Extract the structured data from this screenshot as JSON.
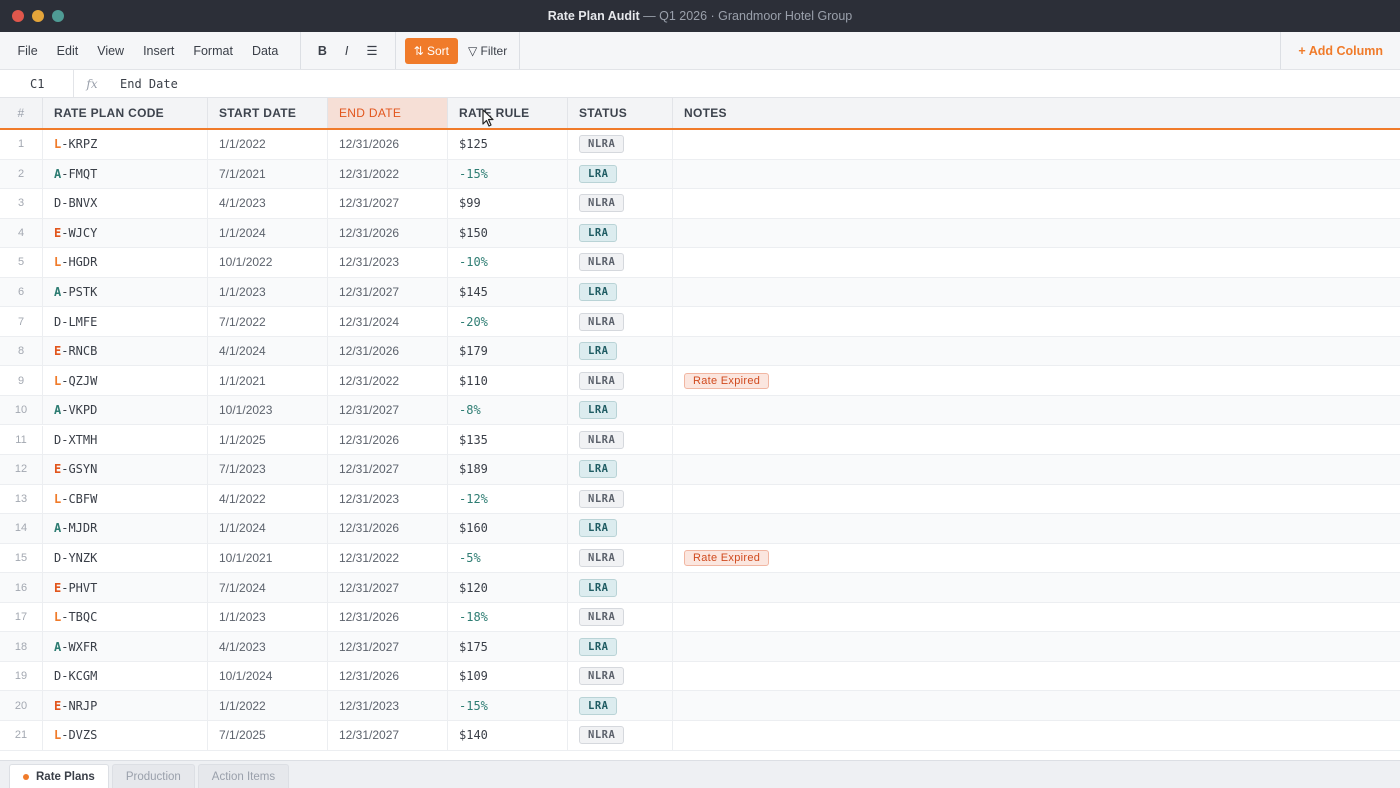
{
  "window": {
    "title_main": "Rate Plan Audit",
    "title_rest": " — Q1 2026  ·  Grandmoor Hotel Group"
  },
  "toolbar": {
    "menus": [
      "File",
      "Edit",
      "View",
      "Insert",
      "Format",
      "Data"
    ],
    "bold": "B",
    "italic": "I",
    "align": "☰",
    "sort": "⇅ Sort",
    "filter": "▽ Filter",
    "add_column": "+ Add Column"
  },
  "formula_bar": {
    "cell_ref": "C1",
    "fx": "fx",
    "value": "End Date"
  },
  "columns": {
    "num": "#",
    "code": "RATE PLAN CODE",
    "start": "START DATE",
    "end": "END DATE",
    "rule": "RATE RULE",
    "status": "STATUS",
    "notes": "NOTES"
  },
  "rows": [
    {
      "n": "1",
      "prefix": "L",
      "rest": "-KRPZ",
      "start": "1/1/2022",
      "end": "12/31/2026",
      "rule": "$125",
      "status": "NLRA",
      "note": ""
    },
    {
      "n": "2",
      "prefix": "A",
      "rest": "-FMQT",
      "start": "7/1/2021",
      "end": "12/31/2022",
      "rule": "-15%",
      "status": "LRA",
      "note": ""
    },
    {
      "n": "3",
      "prefix": "D",
      "rest": "-BNVX",
      "start": "4/1/2023",
      "end": "12/31/2027",
      "rule": "$99",
      "status": "NLRA",
      "note": ""
    },
    {
      "n": "4",
      "prefix": "E",
      "rest": "-WJCY",
      "start": "1/1/2024",
      "end": "12/31/2026",
      "rule": "$150",
      "status": "LRA",
      "note": ""
    },
    {
      "n": "5",
      "prefix": "L",
      "rest": "-HGDR",
      "start": "10/1/2022",
      "end": "12/31/2023",
      "rule": "-10%",
      "status": "NLRA",
      "note": ""
    },
    {
      "n": "6",
      "prefix": "A",
      "rest": "-PSTK",
      "start": "1/1/2023",
      "end": "12/31/2027",
      "rule": "$145",
      "status": "LRA",
      "note": ""
    },
    {
      "n": "7",
      "prefix": "D",
      "rest": "-LMFE",
      "start": "7/1/2022",
      "end": "12/31/2024",
      "rule": "-20%",
      "status": "NLRA",
      "note": ""
    },
    {
      "n": "8",
      "prefix": "E",
      "rest": "-RNCB",
      "start": "4/1/2024",
      "end": "12/31/2026",
      "rule": "$179",
      "status": "LRA",
      "note": ""
    },
    {
      "n": "9",
      "prefix": "L",
      "rest": "-QZJW",
      "start": "1/1/2021",
      "end": "12/31/2022",
      "rule": "$110",
      "status": "NLRA",
      "note": "Rate Expired"
    },
    {
      "n": "10",
      "prefix": "A",
      "rest": "-VKPD",
      "start": "10/1/2023",
      "end": "12/31/2027",
      "rule": "-8%",
      "status": "LRA",
      "note": ""
    },
    {
      "n": "11",
      "prefix": "D",
      "rest": "-XTMH",
      "start": "1/1/2025",
      "end": "12/31/2026",
      "rule": "$135",
      "status": "NLRA",
      "note": ""
    },
    {
      "n": "12",
      "prefix": "E",
      "rest": "-GSYN",
      "start": "7/1/2023",
      "end": "12/31/2027",
      "rule": "$189",
      "status": "LRA",
      "note": ""
    },
    {
      "n": "13",
      "prefix": "L",
      "rest": "-CBFW",
      "start": "4/1/2022",
      "end": "12/31/2023",
      "rule": "-12%",
      "status": "NLRA",
      "note": ""
    },
    {
      "n": "14",
      "prefix": "A",
      "rest": "-MJDR",
      "start": "1/1/2024",
      "end": "12/31/2026",
      "rule": "$160",
      "status": "LRA",
      "note": ""
    },
    {
      "n": "15",
      "prefix": "D",
      "rest": "-YNZK",
      "start": "10/1/2021",
      "end": "12/31/2022",
      "rule": "-5%",
      "status": "NLRA",
      "note": "Rate Expired"
    },
    {
      "n": "16",
      "prefix": "E",
      "rest": "-PHVT",
      "start": "7/1/2024",
      "end": "12/31/2027",
      "rule": "$120",
      "status": "LRA",
      "note": ""
    },
    {
      "n": "17",
      "prefix": "L",
      "rest": "-TBQC",
      "start": "1/1/2023",
      "end": "12/31/2026",
      "rule": "-18%",
      "status": "NLRA",
      "note": ""
    },
    {
      "n": "18",
      "prefix": "A",
      "rest": "-WXFR",
      "start": "4/1/2023",
      "end": "12/31/2027",
      "rule": "$175",
      "status": "LRA",
      "note": ""
    },
    {
      "n": "19",
      "prefix": "D",
      "rest": "-KCGM",
      "start": "10/1/2024",
      "end": "12/31/2026",
      "rule": "$109",
      "status": "NLRA",
      "note": ""
    },
    {
      "n": "20",
      "prefix": "E",
      "rest": "-NRJP",
      "start": "1/1/2022",
      "end": "12/31/2023",
      "rule": "-15%",
      "status": "LRA",
      "note": ""
    },
    {
      "n": "21",
      "prefix": "L",
      "rest": "-DVZS",
      "start": "7/1/2025",
      "end": "12/31/2027",
      "rule": "$140",
      "status": "NLRA",
      "note": ""
    }
  ],
  "sheets": [
    "Rate Plans",
    "Production",
    "Action Items"
  ],
  "active_sheet": "Rate Plans",
  "colors": {
    "accent": "#f07b2a",
    "teal": "#2e7d73",
    "alert": "#e2561d"
  }
}
